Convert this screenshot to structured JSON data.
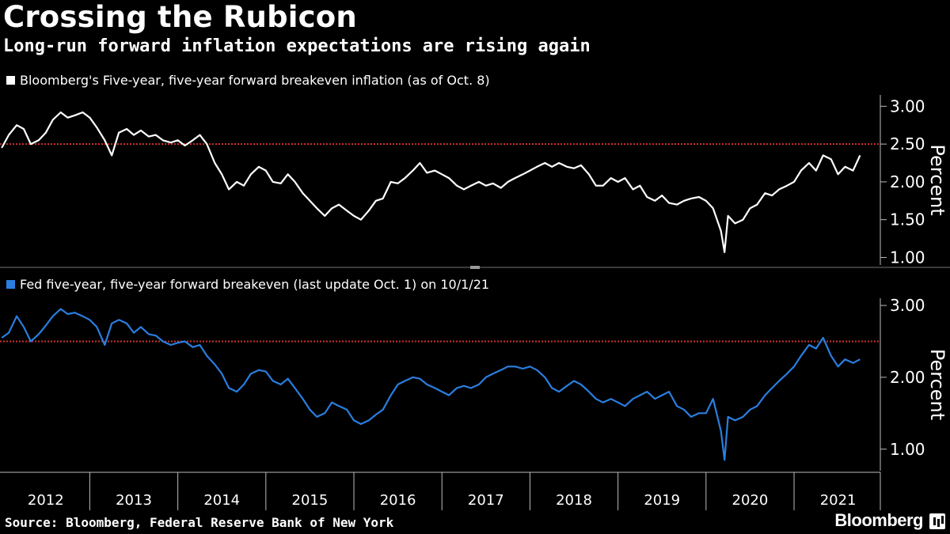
{
  "header": {
    "title": "Crossing the Rubicon",
    "subtitle": "Long-run forward inflation expectations are rising again"
  },
  "footer": {
    "source": "Source: Bloomberg, Federal Reserve Bank of New York",
    "brand": "Bloomberg"
  },
  "colors": {
    "background": "#000000",
    "top_series": "#ffffff",
    "bottom_series": "#2a7ee0",
    "reference_line": "#d03030",
    "axis": "#bbbbbb"
  },
  "chart_data": [
    {
      "type": "line",
      "legend": "Bloomberg's Five-year, five-year forward breakeven inflation (as of Oct. 8)",
      "ylabel": "Percent",
      "ylim": [
        0.9,
        3.15
      ],
      "yticks": [
        "1.00",
        "1.50",
        "2.00",
        "2.50",
        "3.00"
      ],
      "reference_line": 2.5,
      "x_categories": [
        "2012",
        "2013",
        "2014",
        "2015",
        "2016",
        "2017",
        "2018",
        "2019",
        "2020",
        "2021"
      ],
      "series": [
        {
          "x": [
            2012.0,
            2012.08,
            2012.17,
            2012.25,
            2012.33,
            2012.42,
            2012.5,
            2012.58,
            2012.67,
            2012.75,
            2012.83,
            2012.92,
            2013.0,
            2013.08,
            2013.17,
            2013.25,
            2013.33,
            2013.42,
            2013.5,
            2013.58,
            2013.67,
            2013.75,
            2013.83,
            2013.92,
            2014.0,
            2014.08,
            2014.17,
            2014.25,
            2014.33,
            2014.42,
            2014.5,
            2014.58,
            2014.67,
            2014.75,
            2014.83,
            2014.92,
            2015.0,
            2015.08,
            2015.17,
            2015.25,
            2015.33,
            2015.42,
            2015.5,
            2015.58,
            2015.67,
            2015.75,
            2015.83,
            2015.92,
            2016.0,
            2016.08,
            2016.17,
            2016.25,
            2016.33,
            2016.42,
            2016.5,
            2016.58,
            2016.67,
            2016.75,
            2016.83,
            2016.92,
            2017.0,
            2017.08,
            2017.17,
            2017.25,
            2017.33,
            2017.42,
            2017.5,
            2017.58,
            2017.67,
            2017.75,
            2017.83,
            2017.92,
            2018.0,
            2018.08,
            2018.17,
            2018.25,
            2018.33,
            2018.42,
            2018.5,
            2018.58,
            2018.67,
            2018.75,
            2018.83,
            2018.92,
            2019.0,
            2019.08,
            2019.17,
            2019.25,
            2019.33,
            2019.42,
            2019.5,
            2019.58,
            2019.67,
            2019.75,
            2019.83,
            2019.92,
            2020.0,
            2020.08,
            2020.17,
            2020.21,
            2020.25,
            2020.33,
            2020.42,
            2020.5,
            2020.58,
            2020.67,
            2020.75,
            2020.83,
            2020.92,
            2021.0,
            2021.08,
            2021.17,
            2021.25,
            2021.33,
            2021.42,
            2021.5,
            2021.58,
            2021.67,
            2021.75
          ],
          "values": [
            2.45,
            2.62,
            2.75,
            2.7,
            2.5,
            2.55,
            2.65,
            2.82,
            2.92,
            2.85,
            2.88,
            2.92,
            2.85,
            2.72,
            2.55,
            2.35,
            2.65,
            2.7,
            2.62,
            2.68,
            2.6,
            2.62,
            2.55,
            2.52,
            2.55,
            2.48,
            2.55,
            2.62,
            2.5,
            2.25,
            2.1,
            1.9,
            2.0,
            1.95,
            2.1,
            2.2,
            2.15,
            2.0,
            1.98,
            2.1,
            2.0,
            1.85,
            1.75,
            1.65,
            1.55,
            1.65,
            1.7,
            1.62,
            1.55,
            1.5,
            1.62,
            1.75,
            1.78,
            2.0,
            1.98,
            2.05,
            2.15,
            2.25,
            2.12,
            2.15,
            2.1,
            2.05,
            1.95,
            1.9,
            1.95,
            2.0,
            1.95,
            1.98,
            1.92,
            2.0,
            2.05,
            2.1,
            2.15,
            2.2,
            2.25,
            2.2,
            2.25,
            2.2,
            2.18,
            2.22,
            2.1,
            1.95,
            1.95,
            2.05,
            2.0,
            2.05,
            1.9,
            1.95,
            1.8,
            1.75,
            1.82,
            1.72,
            1.7,
            1.75,
            1.78,
            1.8,
            1.75,
            1.65,
            1.35,
            1.07,
            1.55,
            1.45,
            1.5,
            1.65,
            1.7,
            1.85,
            1.82,
            1.9,
            1.95,
            2.0,
            2.15,
            2.25,
            2.15,
            2.35,
            2.3,
            2.1,
            2.2,
            2.15,
            2.35
          ]
        }
      ]
    },
    {
      "type": "line",
      "legend": "Fed five-year, five-year forward breakeven (last update Oct. 1) on 10/1/21",
      "ylabel": "Percent",
      "ylim": [
        0.7,
        3.1
      ],
      "yticks": [
        "1.00",
        "2.00",
        "3.00"
      ],
      "reference_line": 2.5,
      "x_categories": [
        "2012",
        "2013",
        "2014",
        "2015",
        "2016",
        "2017",
        "2018",
        "2019",
        "2020",
        "2021"
      ],
      "series": [
        {
          "x": [
            2012.0,
            2012.08,
            2012.17,
            2012.25,
            2012.33,
            2012.42,
            2012.5,
            2012.58,
            2012.67,
            2012.75,
            2012.83,
            2012.92,
            2013.0,
            2013.08,
            2013.17,
            2013.25,
            2013.33,
            2013.42,
            2013.5,
            2013.58,
            2013.67,
            2013.75,
            2013.83,
            2013.92,
            2014.0,
            2014.08,
            2014.17,
            2014.25,
            2014.33,
            2014.42,
            2014.5,
            2014.58,
            2014.67,
            2014.75,
            2014.83,
            2014.92,
            2015.0,
            2015.08,
            2015.17,
            2015.25,
            2015.33,
            2015.42,
            2015.5,
            2015.58,
            2015.67,
            2015.75,
            2015.83,
            2015.92,
            2016.0,
            2016.08,
            2016.17,
            2016.25,
            2016.33,
            2016.42,
            2016.5,
            2016.58,
            2016.67,
            2016.75,
            2016.83,
            2016.92,
            2017.0,
            2017.08,
            2017.17,
            2017.25,
            2017.33,
            2017.42,
            2017.5,
            2017.58,
            2017.67,
            2017.75,
            2017.83,
            2017.92,
            2018.0,
            2018.08,
            2018.17,
            2018.25,
            2018.33,
            2018.42,
            2018.5,
            2018.58,
            2018.67,
            2018.75,
            2018.83,
            2018.92,
            2019.0,
            2019.08,
            2019.17,
            2019.25,
            2019.33,
            2019.42,
            2019.5,
            2019.58,
            2019.67,
            2019.75,
            2019.83,
            2019.92,
            2020.0,
            2020.08,
            2020.17,
            2020.21,
            2020.25,
            2020.33,
            2020.42,
            2020.5,
            2020.58,
            2020.67,
            2020.75,
            2020.83,
            2020.92,
            2021.0,
            2021.08,
            2021.17,
            2021.25,
            2021.33,
            2021.42,
            2021.5,
            2021.58,
            2021.67,
            2021.75
          ],
          "values": [
            2.55,
            2.62,
            2.85,
            2.7,
            2.5,
            2.6,
            2.72,
            2.85,
            2.95,
            2.88,
            2.9,
            2.85,
            2.8,
            2.7,
            2.45,
            2.75,
            2.8,
            2.75,
            2.62,
            2.7,
            2.6,
            2.58,
            2.5,
            2.45,
            2.48,
            2.5,
            2.42,
            2.45,
            2.3,
            2.18,
            2.05,
            1.85,
            1.8,
            1.9,
            2.05,
            2.1,
            2.08,
            1.95,
            1.9,
            1.98,
            1.85,
            1.7,
            1.55,
            1.45,
            1.5,
            1.65,
            1.6,
            1.55,
            1.4,
            1.35,
            1.4,
            1.48,
            1.55,
            1.75,
            1.9,
            1.95,
            2.0,
            1.98,
            1.9,
            1.85,
            1.8,
            1.75,
            1.85,
            1.88,
            1.85,
            1.9,
            2.0,
            2.05,
            2.1,
            2.15,
            2.15,
            2.12,
            2.15,
            2.1,
            2.0,
            1.85,
            1.8,
            1.88,
            1.95,
            1.9,
            1.8,
            1.7,
            1.65,
            1.7,
            1.65,
            1.6,
            1.7,
            1.75,
            1.8,
            1.7,
            1.75,
            1.8,
            1.6,
            1.55,
            1.45,
            1.5,
            1.5,
            1.7,
            1.25,
            0.85,
            1.45,
            1.4,
            1.45,
            1.55,
            1.6,
            1.75,
            1.85,
            1.95,
            2.05,
            2.15,
            2.3,
            2.45,
            2.4,
            2.55,
            2.3,
            2.15,
            2.25,
            2.2,
            2.25
          ]
        }
      ]
    }
  ]
}
